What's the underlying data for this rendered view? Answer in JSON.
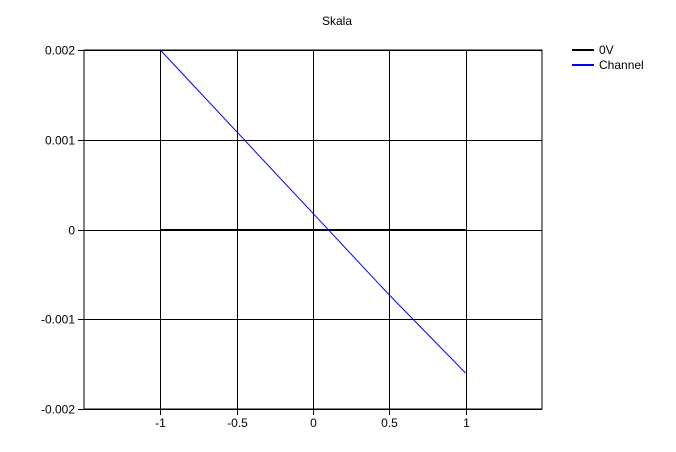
{
  "chart_data": {
    "type": "line",
    "title": "Skala",
    "xlabel": "",
    "ylabel": "",
    "xlim": [
      -1.5,
      1.5
    ],
    "ylim": [
      -0.002,
      0.002
    ],
    "x_ticks": [
      -1,
      -0.5,
      0,
      0.5,
      1
    ],
    "x_tick_labels": [
      "-1",
      "-0.5",
      "0",
      "0.5",
      "1"
    ],
    "y_ticks": [
      -0.002,
      -0.001,
      0,
      0.001,
      0.002
    ],
    "y_tick_labels": [
      "-0.002",
      "-0.001",
      "0",
      "0.001",
      "0.002"
    ],
    "grid": true,
    "legend_position": "top-right",
    "series": [
      {
        "name": "0V",
        "color": "#000000",
        "x": [
          -1,
          1
        ],
        "y": [
          0,
          0
        ]
      },
      {
        "name": "Channel",
        "color": "#0000ff",
        "x": [
          -1,
          -0.5,
          0,
          0.5,
          1
        ],
        "y": [
          0.002,
          0.00109,
          0.00018,
          -0.00073,
          -0.0016
        ]
      }
    ]
  }
}
